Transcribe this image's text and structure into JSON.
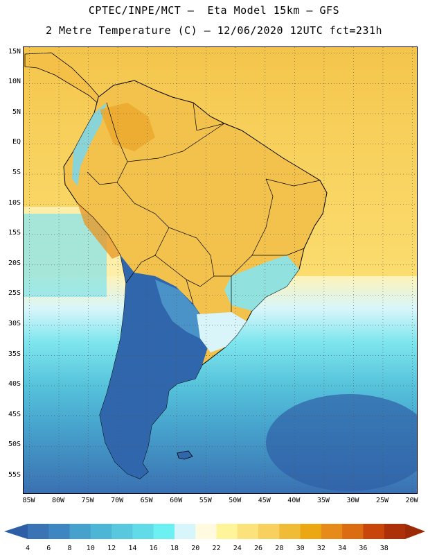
{
  "header": {
    "title_line1": "CPTEC/INPE/MCT –  Eta Model 15km – GFS",
    "title_line2": "2 Metre Temperature (C) – 12/06/2020 12UTC fct=231h"
  },
  "map": {
    "lat_range": [
      -58,
      16
    ],
    "lon_range": [
      -86,
      -19
    ],
    "lat_labels": [
      {
        "lat": 15,
        "label": "15N"
      },
      {
        "lat": 10,
        "label": "10N"
      },
      {
        "lat": 5,
        "label": "5N"
      },
      {
        "lat": 0,
        "label": "EQ"
      },
      {
        "lat": -5,
        "label": "5S"
      },
      {
        "lat": -10,
        "label": "10S"
      },
      {
        "lat": -15,
        "label": "15S"
      },
      {
        "lat": -20,
        "label": "20S"
      },
      {
        "lat": -25,
        "label": "25S"
      },
      {
        "lat": -30,
        "label": "30S"
      },
      {
        "lat": -35,
        "label": "35S"
      },
      {
        "lat": -40,
        "label": "40S"
      },
      {
        "lat": -45,
        "label": "45S"
      },
      {
        "lat": -50,
        "label": "50S"
      },
      {
        "lat": -55,
        "label": "55S"
      }
    ],
    "lon_labels": [
      {
        "lon": -85,
        "label": "85W"
      },
      {
        "lon": -80,
        "label": "80W"
      },
      {
        "lon": -75,
        "label": "75W"
      },
      {
        "lon": -70,
        "label": "70W"
      },
      {
        "lon": -65,
        "label": "65W"
      },
      {
        "lon": -60,
        "label": "60W"
      },
      {
        "lon": -55,
        "label": "55W"
      },
      {
        "lon": -50,
        "label": "50W"
      },
      {
        "lon": -45,
        "label": "45W"
      },
      {
        "lon": -40,
        "label": "40W"
      },
      {
        "lon": -35,
        "label": "35W"
      },
      {
        "lon": -30,
        "label": "30W"
      },
      {
        "lon": -25,
        "label": "25W"
      },
      {
        "lon": -20,
        "label": "20W"
      }
    ]
  },
  "colorbar": {
    "labels": [
      "4",
      "6",
      "8",
      "10",
      "12",
      "14",
      "16",
      "18",
      "20",
      "22",
      "24",
      "26",
      "28",
      "30",
      "32",
      "34",
      "36",
      "38"
    ],
    "colors": [
      "#3a74b4",
      "#3e86c2",
      "#46a2cc",
      "#4db6d6",
      "#58c8df",
      "#62dbe8",
      "#6cf0f2",
      "#d7f6fb",
      "#fffae0",
      "#fef59a",
      "#fbe27a",
      "#f7d05e",
      "#f0bc38",
      "#eca812",
      "#e68a1a",
      "#dc6c12",
      "#c8460a",
      "#ac3008"
    ],
    "low_arrow_color": "#2e5fa6",
    "high_arrow_color": "#9c2a06"
  }
}
